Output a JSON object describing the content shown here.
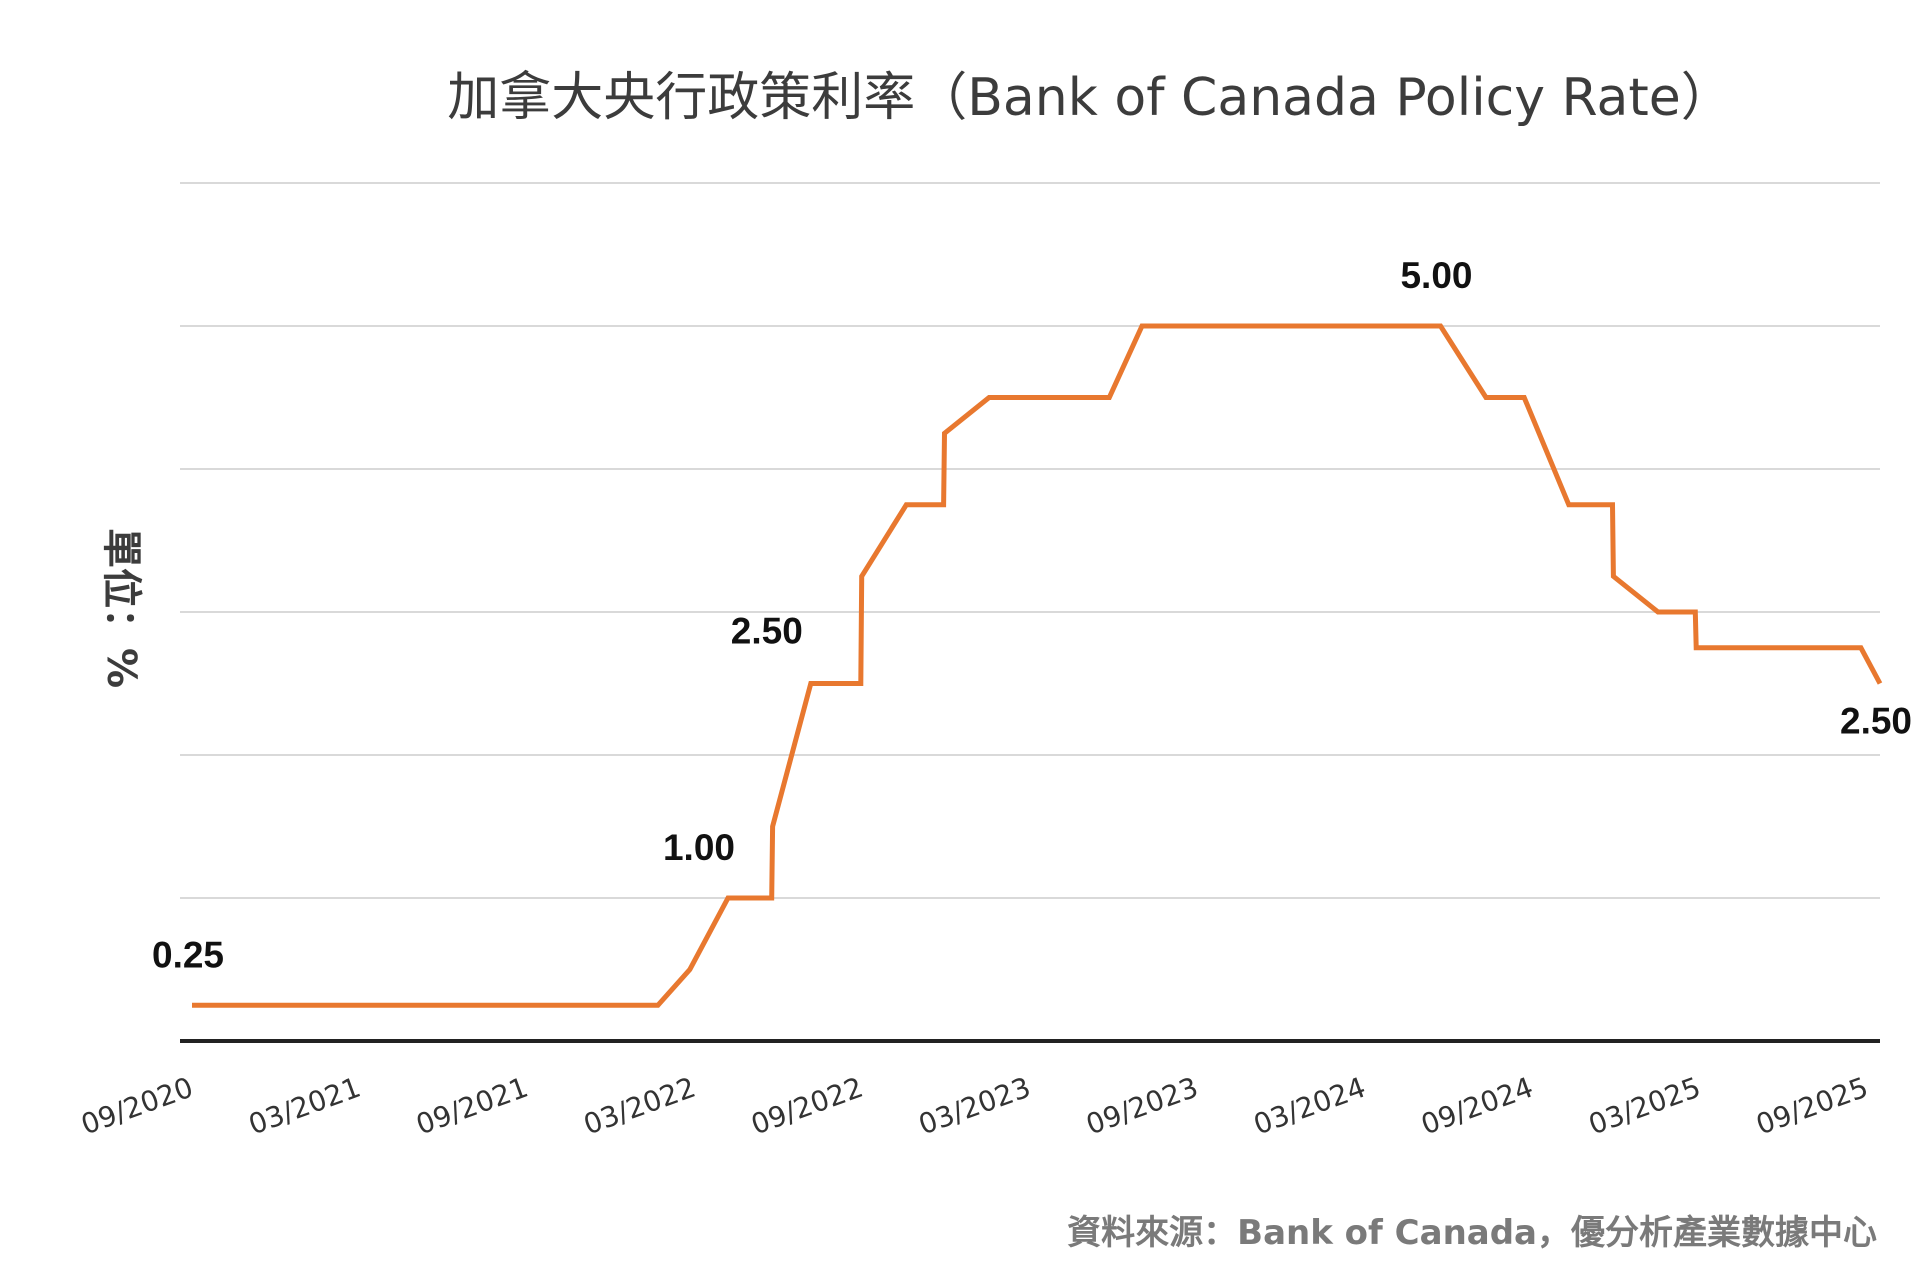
{
  "chart_data": {
    "type": "line",
    "title": "加拿大央行政策利率（Bank of Canada Policy Rate）",
    "ylabel": "單位：%",
    "xlabel": "",
    "source": "資料來源：Bank of Canada，優分析產業數據中心",
    "ylim": [
      0,
      6
    ],
    "xlim": [
      "2020-09",
      "2025-09"
    ],
    "grid": true,
    "legend": "none",
    "colors": {
      "line": "#E8782F",
      "grid": "#d9d9d9",
      "axis": "#222222"
    },
    "x_ticks": [
      "09/2020",
      "03/2021",
      "09/2021",
      "03/2022",
      "09/2022",
      "03/2023",
      "09/2023",
      "03/2024",
      "09/2024",
      "03/2025",
      "09/2025"
    ],
    "series": [
      {
        "points": [
          {
            "x": "2020-09-01",
            "y": 0.25
          },
          {
            "x": "2022-01-26",
            "y": 0.25
          },
          {
            "x": "2022-03-02",
            "y": 0.5
          },
          {
            "x": "2022-04-13",
            "y": 1.0
          },
          {
            "x": "2022-05-31",
            "y": 1.0
          },
          {
            "x": "2022-06-01",
            "y": 1.5
          },
          {
            "x": "2022-07-13",
            "y": 2.5
          },
          {
            "x": "2022-09-06",
            "y": 2.5
          },
          {
            "x": "2022-09-07",
            "y": 3.25
          },
          {
            "x": "2022-10-26",
            "y": 3.75
          },
          {
            "x": "2022-12-06",
            "y": 3.75
          },
          {
            "x": "2022-12-07",
            "y": 4.25
          },
          {
            "x": "2023-01-25",
            "y": 4.5
          },
          {
            "x": "2023-06-06",
            "y": 4.5
          },
          {
            "x": "2023-07-12",
            "y": 5.0
          },
          {
            "x": "2024-06-04",
            "y": 5.0
          },
          {
            "x": "2024-07-24",
            "y": 4.5
          },
          {
            "x": "2024-09-04",
            "y": 4.5
          },
          {
            "x": "2024-10-23",
            "y": 3.75
          },
          {
            "x": "2024-12-10",
            "y": 3.75
          },
          {
            "x": "2024-12-11",
            "y": 3.25
          },
          {
            "x": "2025-01-29",
            "y": 3.0
          },
          {
            "x": "2025-03-11",
            "y": 3.0
          },
          {
            "x": "2025-03-12",
            "y": 2.75
          },
          {
            "x": "2025-09-09",
            "y": 2.75
          },
          {
            "x": "2025-09-30",
            "y": 2.5
          }
        ]
      }
    ],
    "annotations": [
      {
        "text": "0.25",
        "x": "2020-09-01",
        "y": 0.25
      },
      {
        "text": "1.00",
        "x": "2022-04-13",
        "y": 1.0
      },
      {
        "text": "2.50",
        "x": "2022-07-13",
        "y": 2.5
      },
      {
        "text": "5.00",
        "x": "2024-06-04",
        "y": 5.0
      },
      {
        "text": "2.50",
        "x": "2025-09-30",
        "y": 2.5
      }
    ]
  }
}
